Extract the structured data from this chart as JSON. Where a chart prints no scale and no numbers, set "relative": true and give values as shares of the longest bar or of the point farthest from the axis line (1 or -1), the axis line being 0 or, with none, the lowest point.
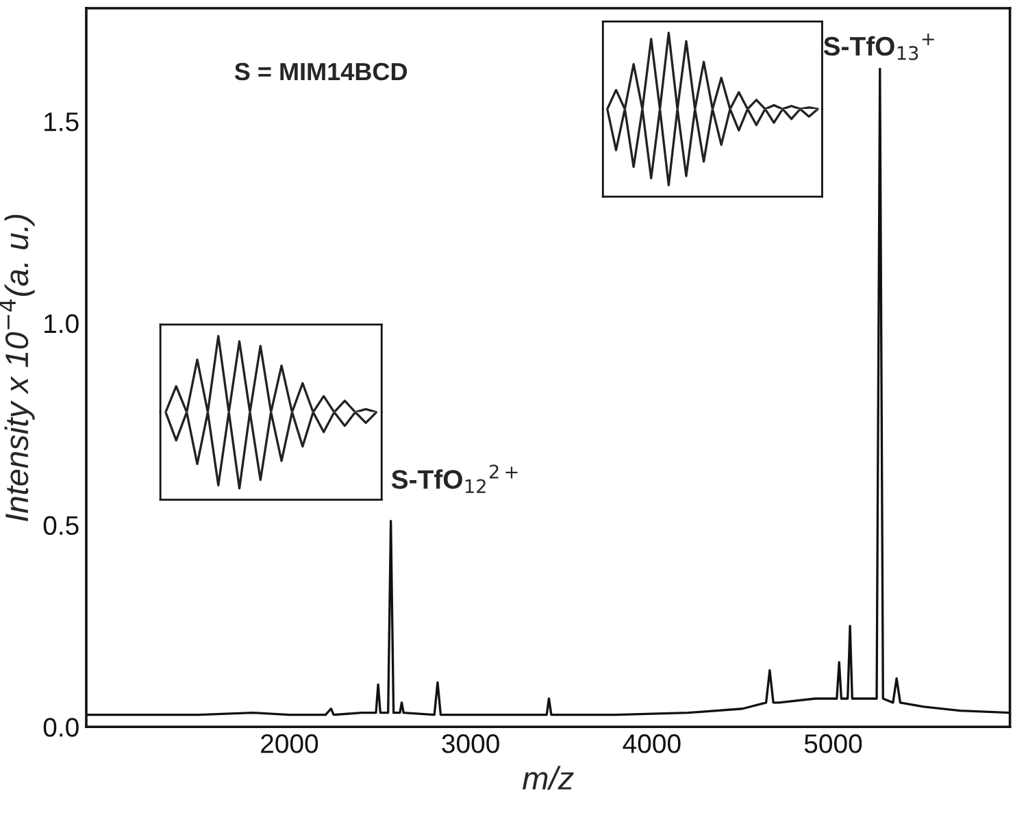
{
  "chart_data": [
    {
      "type": "line",
      "xlabel": "m/z",
      "ylabel": "Intensity x 10$^{−4}$(a. u.)",
      "xlim": [
        880,
        5975
      ],
      "ylim": [
        0,
        1.78
      ],
      "xticks": [
        2000,
        3000,
        4000,
        5000
      ],
      "yticks": [
        {
          "value": 0,
          "label": "0.0"
        },
        {
          "value": 0.5,
          "label": "0.5"
        },
        {
          "value": 1.0,
          "label": "1.0"
        },
        {
          "value": 1.5,
          "label": "1.5"
        }
      ],
      "grid": false,
      "legend": false,
      "line_style": "solid",
      "marker": "none",
      "x": [
        880,
        1200,
        1500,
        1800,
        2000,
        2200,
        2230,
        2245,
        2400,
        2478,
        2490,
        2502,
        2545,
        2560,
        2575,
        2610,
        2620,
        2630,
        2800,
        2818,
        2835,
        3000,
        3420,
        3432,
        3445,
        3800,
        4200,
        4500,
        4630,
        4650,
        4670,
        4700,
        4900,
        5020,
        5033,
        5045,
        5080,
        5093,
        5105,
        5150,
        5240,
        5258,
        5275,
        5330,
        5350,
        5370,
        5500,
        5700,
        5975
      ],
      "series": [
        {
          "color": "#111111",
          "values": [
            0.03,
            0.03,
            0.03,
            0.035,
            0.03,
            0.03,
            0.045,
            0.03,
            0.035,
            0.035,
            0.105,
            0.035,
            0.035,
            0.51,
            0.035,
            0.035,
            0.06,
            0.035,
            0.03,
            0.11,
            0.03,
            0.03,
            0.03,
            0.07,
            0.03,
            0.03,
            0.035,
            0.045,
            0.06,
            0.14,
            0.06,
            0.06,
            0.07,
            0.07,
            0.16,
            0.07,
            0.07,
            0.25,
            0.07,
            0.07,
            0.07,
            1.63,
            0.07,
            0.06,
            0.12,
            0.06,
            0.05,
            0.04,
            0.035
          ]
        }
      ],
      "annotations": [
        "S = MIM14BCD",
        {
          "text": "S-TfO$_{12}$$^{2+}$",
          "x": 2560,
          "y": 0.51
        },
        {
          "text": "S-TfO$_{13}$$^{+}$",
          "x": 5258,
          "y": 1.63
        }
      ]
    },
    {
      "type": "line",
      "relative": true,
      "grid": false,
      "legend": false,
      "categories": [
        null,
        null,
        null,
        null,
        null,
        null,
        null,
        null,
        null,
        null,
        null,
        null,
        null,
        null,
        null,
        null,
        null,
        null,
        null,
        null,
        null
      ],
      "series": [
        {
          "color": "#222222",
          "values": [
            0,
            0.34,
            0,
            0.69,
            0,
            1,
            0,
            0.93,
            0,
            0.87,
            0,
            0.61,
            0,
            0.38,
            0,
            0.21,
            0,
            0.15,
            0,
            0.04,
            0
          ]
        }
      ]
    },
    {
      "type": "line",
      "relative": true,
      "grid": false,
      "legend": false,
      "categories": [
        null,
        null,
        null,
        null,
        null,
        null,
        null,
        null,
        null,
        null,
        null,
        null,
        null,
        null,
        null,
        null,
        null,
        null,
        null,
        null,
        null
      ],
      "series": [
        {
          "color": "#222222",
          "values": [
            0,
            -0.37,
            0,
            -0.68,
            0,
            -0.96,
            0,
            -1,
            0,
            -0.89,
            0,
            -0.64,
            0,
            -0.45,
            0,
            -0.26,
            0,
            -0.18,
            0,
            -0.14,
            0
          ]
        }
      ]
    },
    {
      "type": "line",
      "relative": true,
      "grid": false,
      "legend": false,
      "categories": [
        null,
        null,
        null,
        null,
        null,
        null,
        null,
        null,
        null,
        null,
        null,
        null,
        null,
        null,
        null,
        null,
        null,
        null,
        null,
        null,
        null,
        null,
        null,
        null,
        null
      ],
      "series": [
        {
          "color": "#222222",
          "values": [
            0,
            0.25,
            0,
            0.59,
            0,
            0.92,
            0,
            1,
            0,
            0.89,
            0,
            0.62,
            0,
            0.41,
            0,
            0.22,
            0,
            0.12,
            0,
            0.05,
            0,
            0.04,
            0,
            0.02,
            0
          ]
        }
      ]
    },
    {
      "type": "line",
      "relative": true,
      "grid": false,
      "legend": false,
      "categories": [
        null,
        null,
        null,
        null,
        null,
        null,
        null,
        null,
        null,
        null,
        null,
        null,
        null,
        null,
        null,
        null,
        null,
        null,
        null,
        null,
        null,
        null,
        null,
        null,
        null
      ],
      "series": [
        {
          "color": "#222222",
          "values": [
            0,
            -0.54,
            0,
            -0.76,
            0,
            -0.91,
            0,
            -1,
            0,
            -0.88,
            0,
            -0.69,
            0,
            -0.47,
            0,
            -0.28,
            0,
            -0.21,
            0,
            -0.18,
            0,
            -0.13,
            0,
            -0.1,
            0
          ]
        }
      ]
    }
  ]
}
